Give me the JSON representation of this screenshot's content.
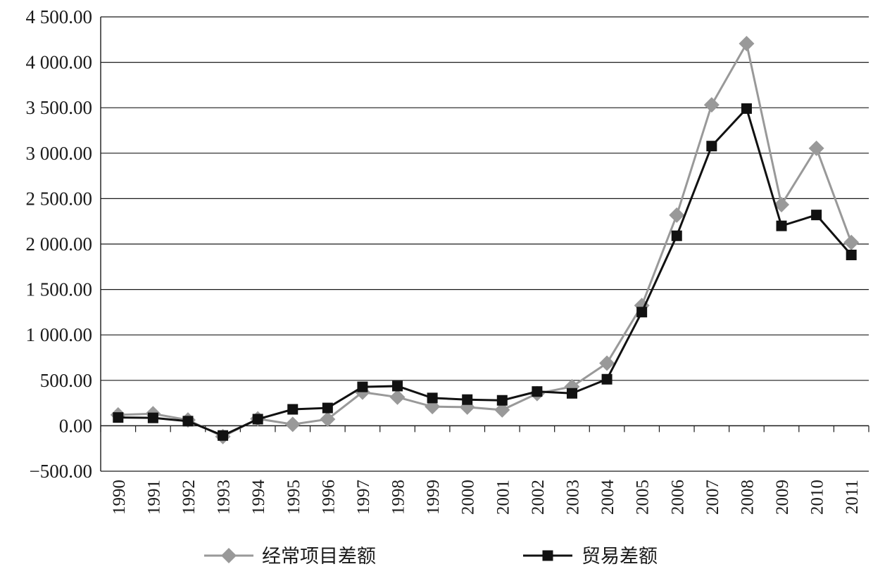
{
  "chart_data": {
    "type": "line",
    "title": "",
    "xlabel": "",
    "ylabel": "",
    "categories": [
      "1990",
      "1991",
      "1992",
      "1993",
      "1994",
      "1995",
      "1996",
      "1997",
      "1998",
      "1999",
      "2000",
      "2001",
      "2002",
      "2003",
      "2004",
      "2005",
      "2006",
      "2007",
      "2008",
      "2009",
      "2010",
      "2011"
    ],
    "ylim": [
      -500,
      4500
    ],
    "yticks": [
      -500,
      0,
      500,
      1000,
      1500,
      2000,
      2500,
      3000,
      3500,
      4000,
      4500
    ],
    "ytick_labels": [
      "−500.00",
      "0.00",
      "500.00",
      "1 000.00",
      "1 500.00",
      "2 000.00",
      "2 500.00",
      "3 000.00",
      "3 500.00",
      "4 000.00",
      "4 500.00"
    ],
    "grid": true,
    "legend_position": "bottom",
    "series": [
      {
        "name": "经常项目差额",
        "color": "#999999",
        "marker": "diamond",
        "values": [
          120,
          133,
          64,
          -119,
          77,
          16,
          72,
          370,
          315,
          211,
          205,
          174,
          354,
          431,
          689,
          1324,
          2318,
          3532,
          4206,
          2433,
          3054,
          2017
        ]
      },
      {
        "name": "贸易差额",
        "color": "#111111",
        "marker": "square",
        "values": [
          91,
          87,
          51,
          -107,
          73,
          181,
          196,
          428,
          437,
          306,
          288,
          280,
          377,
          357,
          512,
          1251,
          2091,
          3078,
          3491,
          2200,
          2320,
          1880
        ]
      }
    ]
  }
}
